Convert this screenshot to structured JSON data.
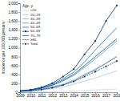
{
  "chart_data": {
    "type": "line",
    "y_label": "Incidence per 100,000 persons",
    "legend_title": "Age, y",
    "x": [
      2009,
      2010,
      2011,
      2012,
      2013,
      2014,
      2015,
      2016,
      2017,
      2018
    ],
    "xlim": [
      2009,
      2018
    ],
    "xticks": [
      2009,
      2010,
      2011,
      2012,
      2013,
      2014,
      2015,
      2016,
      2017,
      2018
    ],
    "ylim": [
      0,
      2000
    ],
    "yticks": [
      0,
      200,
      400,
      600,
      800,
      {
        "value": 1000,
        "label": "1,000"
      },
      {
        "value": 1200,
        "label": "1,200"
      },
      {
        "value": 1400,
        "label": "1,400"
      },
      {
        "value": 1600,
        "label": "1,600"
      },
      {
        "value": 1800,
        "label": "1,800"
      },
      {
        "value": 2000,
        "label": "2,000"
      }
    ],
    "grid": false,
    "legend": "top-left",
    "series": [
      {
        "name": "<20",
        "color": "#c6dbef",
        "values": [
          5,
          8,
          10,
          15,
          20,
          30,
          40,
          50,
          60,
          70
        ]
      },
      {
        "name": "20–29",
        "color": "#9ecae1",
        "values": [
          20,
          30,
          50,
          80,
          120,
          180,
          250,
          320,
          400,
          480
        ]
      },
      {
        "name": "30–39",
        "color": "#6baed6",
        "values": [
          25,
          40,
          70,
          120,
          180,
          270,
          400,
          520,
          650,
          800
        ]
      },
      {
        "name": "40–49",
        "color": "#4292c6",
        "values": [
          30,
          50,
          90,
          150,
          250,
          380,
          560,
          750,
          950,
          1150
        ]
      },
      {
        "name": "50–59",
        "color": "#2171b5",
        "values": [
          30,
          50,
          100,
          180,
          300,
          450,
          680,
          950,
          1200,
          1450
        ]
      },
      {
        "name": "60–69",
        "color": "#08306b",
        "marker": "circle",
        "values": [
          30,
          55,
          110,
          200,
          350,
          520,
          850,
          1150,
          1600,
          1950
        ]
      },
      {
        "name": "70–79",
        "color": "#08519c",
        "values": [
          25,
          45,
          90,
          160,
          270,
          400,
          600,
          800,
          1000,
          1200
        ]
      },
      {
        "name": "≥80",
        "color": "#5a7fa8",
        "values": [
          15,
          30,
          60,
          100,
          160,
          250,
          380,
          500,
          650,
          800
        ]
      },
      {
        "name": "Total",
        "color": "#17375e",
        "marker": "circle",
        "line_style": "dashed",
        "values": [
          20,
          35,
          60,
          100,
          160,
          240,
          350,
          460,
          580,
          700
        ]
      }
    ]
  }
}
